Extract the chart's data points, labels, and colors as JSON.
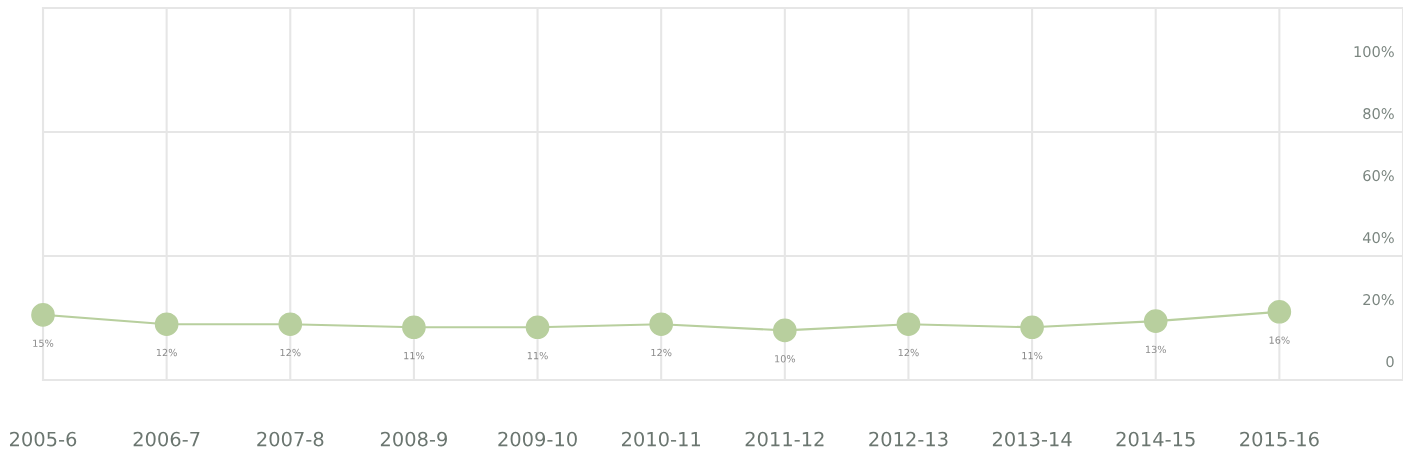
{
  "chart_data": {
    "type": "line",
    "categories": [
      "2005-6",
      "2006-7",
      "2007-8",
      "2008-9",
      "2009-10",
      "2010-11",
      "2011-12",
      "2012-13",
      "2013-14",
      "2014-15",
      "2015-16"
    ],
    "values": [
      15,
      12,
      12,
      11,
      11,
      12,
      10,
      12,
      11,
      13,
      16
    ],
    "value_labels": [
      "15%",
      "12%",
      "12%",
      "11%",
      "11%",
      "12%",
      "10%",
      "12%",
      "11%",
      "13%",
      "16%"
    ],
    "color": "#b8cf9e",
    "marker": "circle",
    "line_style": "solid",
    "ylim": [
      -6,
      114
    ],
    "yticks": [
      0,
      {
        "value": 20,
        "label": "20%"
      },
      {
        "value": 40,
        "label": "40%"
      },
      {
        "value": 60,
        "label": "60%"
      },
      {
        "value": 80,
        "label": "80%"
      },
      {
        "value": 100,
        "label": "100%"
      },
      {
        "value": 34,
        "label": null
      },
      {
        "value": 74,
        "label": null
      }
    ],
    "grid": true,
    "legend": false
  }
}
